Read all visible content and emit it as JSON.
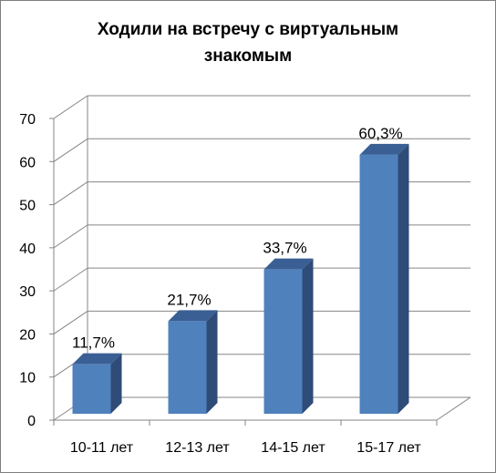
{
  "chart_data": {
    "type": "bar",
    "title": "Ходили на встречу с виртуальным знакомым",
    "categories": [
      "10-11 лет",
      "12-13 лет",
      "14-15 лет",
      "15-17 лет"
    ],
    "values": [
      11.7,
      21.7,
      33.7,
      60.3
    ],
    "data_labels": [
      "11,7%",
      "21,7%",
      "33,7%",
      "60,3%"
    ],
    "yticks": [
      "0",
      "10",
      "20",
      "30",
      "40",
      "50",
      "60",
      "70"
    ],
    "ylim": [
      0,
      70
    ],
    "grid": true,
    "style": "3d-column",
    "colors": {
      "bar_front": "#4f81bd",
      "bar_side": "#2f4b77",
      "bar_top": "#3a5f94",
      "grid": "#868686"
    }
  }
}
